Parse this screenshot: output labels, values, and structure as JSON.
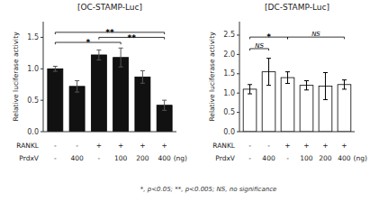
{
  "chart_data": [
    {
      "type": "bar",
      "title": "[OC-STAMP-Luc]",
      "y_label": "Relative luciferase activity",
      "x_label_rows": [
        {
          "name": "RANKL",
          "labels": [
            "-",
            "-",
            "+",
            "+",
            "+",
            "+"
          ]
        },
        {
          "name": "PrdxV",
          "labels": [
            "-",
            "400",
            "-",
            "100",
            "200",
            "400"
          ],
          "unit": "(ng)"
        }
      ],
      "values": [
        1.0,
        0.72,
        1.22,
        1.18,
        0.87,
        0.42
      ],
      "errors": [
        0.04,
        0.09,
        0.08,
        0.15,
        0.1,
        0.08
      ],
      "color": "#111111",
      "ylim": [
        0,
        1.75
      ],
      "yticks": [
        {
          "value": 0,
          "label": "0.0"
        },
        {
          "value": 0.5,
          "label": "0.5"
        },
        {
          "value": 1.0,
          "label": "1.0"
        },
        {
          "value": 1.5,
          "label": "1.5"
        }
      ],
      "grid": false,
      "annotations": [
        {
          "x1": 0,
          "x2": 3,
          "y": 1.42,
          "label": "*",
          "label_y": 1.43
        },
        {
          "x1": 0,
          "x2": 5,
          "y": 1.58,
          "label": "**",
          "label_y": 1.59
        },
        {
          "x1": 2,
          "x2": 5,
          "y": 1.5,
          "label": "**",
          "label_y": 1.51
        }
      ]
    },
    {
      "type": "bar",
      "title": "[DC-STAMP-Luc]",
      "y_label": "Relative luciferase activity",
      "x_label_rows": [
        {
          "name": "RANKL",
          "labels": [
            "-",
            "-",
            "+",
            "+",
            "+",
            "+"
          ]
        },
        {
          "name": "PrdxV",
          "labels": [
            "-",
            "400",
            "-",
            "100",
            "200",
            "400"
          ],
          "unit": "(ng)"
        }
      ],
      "values": [
        1.1,
        1.55,
        1.4,
        1.2,
        1.18,
        1.22
      ],
      "errors": [
        0.12,
        0.35,
        0.15,
        0.12,
        0.35,
        0.12
      ],
      "color": "white",
      "ylim": [
        0,
        2.85
      ],
      "yticks": [
        {
          "value": 0,
          "label": "0.0"
        },
        {
          "value": 0.5,
          "label": "0.5"
        },
        {
          "value": 1.0,
          "label": "1.0"
        },
        {
          "value": 1.5,
          "label": "1.5"
        },
        {
          "value": 2.0,
          "label": "2.0"
        },
        {
          "value": 2.5,
          "label": "2.5"
        }
      ],
      "grid": false,
      "annotations": [
        {
          "x1": 0,
          "x2": 1,
          "y": 2.15,
          "label": "NS",
          "label_y": 2.17
        },
        {
          "x1": 0,
          "x2": 2,
          "y": 2.45,
          "label": "*",
          "label_y": 2.47
        },
        {
          "x1": 2,
          "x2": 5,
          "y": 2.45,
          "label": "NS",
          "label_y": 2.47
        }
      ]
    }
  ],
  "footnote": "*, p<0.05;  **, p<0.005; NS, no significance"
}
